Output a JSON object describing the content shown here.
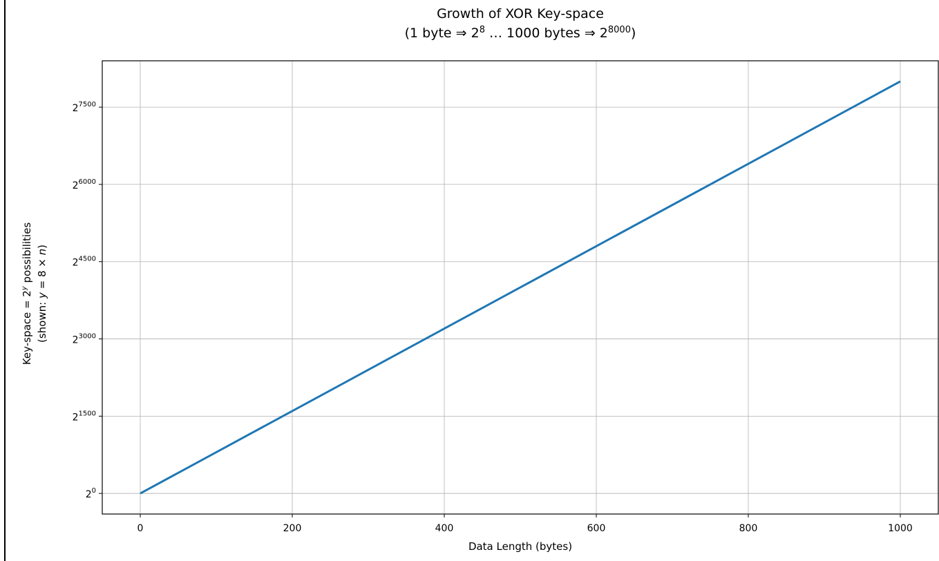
{
  "chart_data": {
    "type": "line",
    "title": {
      "line1": "Growth of XOR Key-space",
      "line2_pre": "(1 byte ⇒ 2",
      "line2_sup1": "8",
      "line2_mid": "  … 1000 bytes ⇒ 2",
      "line2_sup2": "8000",
      "line2_post": ")"
    },
    "xlabel": "Data Length (bytes)",
    "ylabel": {
      "line1_pre": "Key-space = 2",
      "line1_sup": "y",
      "line1_post": " possibilities",
      "line2_pre": "(shown: ",
      "line2_var": "y",
      "line2_mid": " = 8 × ",
      "line2_var2": "n",
      "line2_post": ")"
    },
    "xlim": [
      -50,
      1050
    ],
    "ylim": [
      -400,
      8400
    ],
    "x_ticks": [
      0,
      200,
      400,
      600,
      800,
      1000
    ],
    "y_ticks": [
      0,
      1500,
      3000,
      4500,
      6000,
      7500
    ],
    "y_tick_base": "2",
    "grid": true,
    "series": [
      {
        "x": [
          0,
          1000
        ],
        "y": [
          0,
          8000
        ],
        "color": "#1f77b4"
      }
    ]
  }
}
